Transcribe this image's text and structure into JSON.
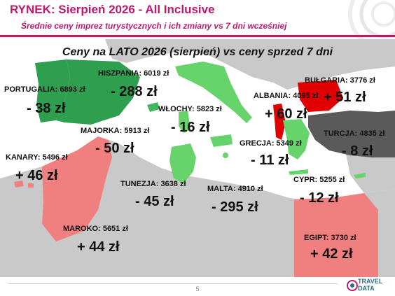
{
  "header": {
    "title": "RYNEK: Sierpień 2026 - All Inclusive",
    "subtitle": "Średnie ceny imprez turystycznych i ich zmiany vs 7 dni wcześniej"
  },
  "map": {
    "title": "Ceny na LATO 2026 (sierpień) vs ceny sprzed 7 dni",
    "colors": {
      "land_gray": "#c9c9c9",
      "dark_gray": "#5a5a5a",
      "green_dark": "#2e9e4f",
      "green_mid": "#45b45e",
      "green_light": "#66d46a",
      "red_strong": "#e00000",
      "red_soft": "#f08080"
    },
    "destinations": [
      {
        "key": "portugalia",
        "name": "PORTUGALIA: 6893 zł",
        "change": "- 38 zł"
      },
      {
        "key": "hiszpania",
        "name": "HISZPANIA: 6019 zł",
        "change": "- 288 zł"
      },
      {
        "key": "majorka",
        "name": "MAJORKA: 5913 zł",
        "change": "- 50 zł"
      },
      {
        "key": "kanary",
        "name": "KANARY: 5496 zł",
        "change": "+ 46 zł"
      },
      {
        "key": "maroko",
        "name": "MAROKO: 5651 zł",
        "change": "+ 44 zł"
      },
      {
        "key": "wlochy",
        "name": "WŁOCHY: 5823 zł",
        "change": "- 16 zł"
      },
      {
        "key": "tunezja",
        "name": "TUNEZJA: 3638 zł",
        "change": "- 45 zł"
      },
      {
        "key": "malta",
        "name": "MALTA: 4910 zł",
        "change": "- 295 zł"
      },
      {
        "key": "albania",
        "name": "ALBANIA: 4095 zł",
        "change": "+ 60 zł"
      },
      {
        "key": "bulgaria",
        "name": "BUŁGARIA: 3776 zł",
        "change": "+ 51 zł"
      },
      {
        "key": "turcja",
        "name": "TURCJA: 4835 zł",
        "change": "- 8 zł"
      },
      {
        "key": "grecja",
        "name": "GRECJA: 5349 zł",
        "change": "- 11 zł"
      },
      {
        "key": "cypr",
        "name": "CYPR: 5255 zł",
        "change": "- 12 zł"
      },
      {
        "key": "egipt",
        "name": "EGIPT: 3730 zł",
        "change": "+ 42 zł"
      }
    ]
  },
  "footer": {
    "page_number": "5",
    "logo_line1": "TRAVEL",
    "logo_line2": "DATA"
  }
}
